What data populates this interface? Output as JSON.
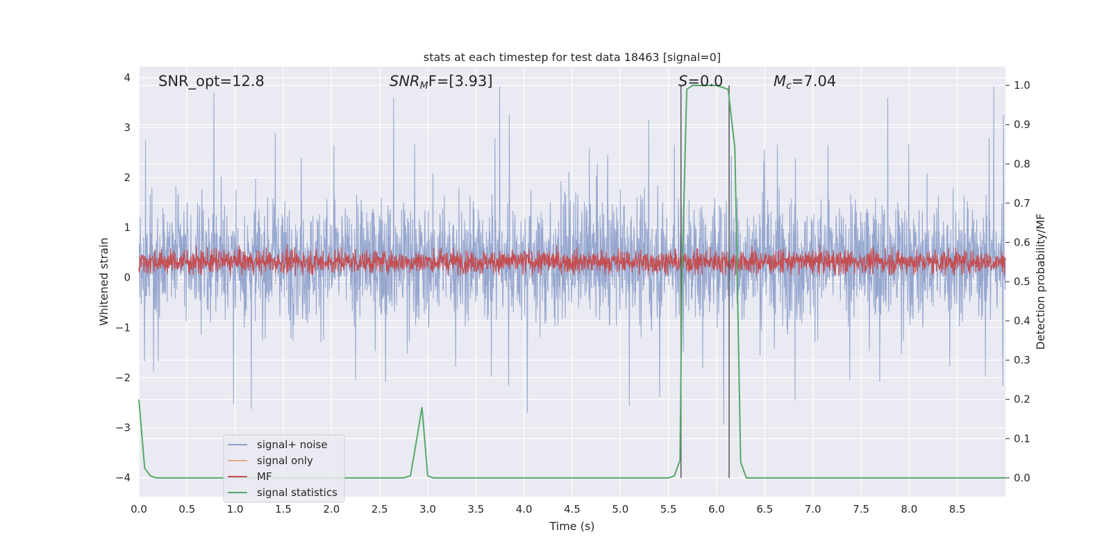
{
  "chart_data": {
    "type": "line",
    "title": "stats at each timestep for test data 18463 [signal=0]",
    "xlabel": "Time (s)",
    "ylabel": "Whitened strain",
    "ylabel_right": "Detection probability/MF",
    "xlim": [
      0.0,
      9.0
    ],
    "ylim": [
      -4.38,
      4.22
    ],
    "ylim_right": [
      -0.048,
      1.048
    ],
    "x_ticks": [
      "0.0",
      "0.5",
      "1.0",
      "1.5",
      "2.0",
      "2.5",
      "3.0",
      "3.5",
      "4.0",
      "4.5",
      "5.0",
      "5.5",
      "6.0",
      "6.5",
      "7.0",
      "7.5",
      "8.0",
      "8.5"
    ],
    "y_ticks": [
      "4",
      "3",
      "2",
      "1",
      "0",
      "−1",
      "−2",
      "−3",
      "−4"
    ],
    "y_right_ticks": [
      "1.0",
      "0.9",
      "0.8",
      "0.7",
      "0.6",
      "0.5",
      "0.4",
      "0.3",
      "0.2",
      "0.1",
      "0.0"
    ],
    "grid": true,
    "legend_position": "lower-left",
    "annotations": {
      "snr_opt": "SNR_opt=12.8",
      "snr_mf_main": "SNR",
      "snr_mf_sub": "M",
      "snr_mf_tail": "F=[3.93]",
      "s_main": "S",
      "s_tail": "=0.0",
      "mc_main": "M",
      "mc_sub": "c",
      "mc_tail": "=7.04"
    },
    "vertical_lines_x": [
      5.63,
      6.13
    ],
    "series": [
      {
        "name": "signal+ noise",
        "color": "#8da0cb",
        "description_range": [
          -4.0,
          3.85
        ],
        "typical_band": [
          -1.6,
          2.2
        ],
        "axis": "left"
      },
      {
        "name": "signal only",
        "color": "#e8a58c",
        "axis": "left",
        "values": []
      },
      {
        "name": "MF",
        "color": "#c44e52",
        "typical_band": [
          0.05,
          0.95
        ],
        "axis": "left"
      },
      {
        "name": "signal statistics",
        "color": "#55a868",
        "axis": "right",
        "x": [
          0.0,
          0.06,
          0.12,
          0.18,
          0.3,
          0.5,
          1.0,
          1.5,
          2.0,
          2.5,
          2.75,
          2.82,
          2.88,
          2.94,
          3.0,
          3.06,
          3.12,
          3.5,
          4.0,
          4.5,
          5.0,
          5.5,
          5.56,
          5.62,
          5.64,
          5.69,
          5.75,
          6.0,
          6.12,
          6.19,
          6.25,
          6.31,
          6.5,
          7.0,
          7.5,
          8.0,
          8.5,
          9.0
        ],
        "values": [
          0.2,
          0.025,
          0.005,
          0.0,
          0.0,
          0.0,
          0.0,
          0.0,
          0.0,
          0.0,
          0.0,
          0.005,
          0.09,
          0.18,
          0.005,
          0.0,
          0.0,
          0.0,
          0.0,
          0.0,
          0.0,
          0.0,
          0.005,
          0.045,
          0.5,
          0.99,
          1.0,
          1.0,
          0.99,
          0.84,
          0.04,
          0.0,
          0.0,
          0.0,
          0.0,
          0.0,
          0.0,
          0.0
        ]
      }
    ]
  },
  "legend": {
    "items": [
      {
        "label": "signal+ noise",
        "color": "#8da0cb"
      },
      {
        "label": "signal only",
        "color": "#e8a58c"
      },
      {
        "label": "MF",
        "color": "#c44e52"
      },
      {
        "label": "signal statistics",
        "color": "#55a868"
      }
    ]
  }
}
